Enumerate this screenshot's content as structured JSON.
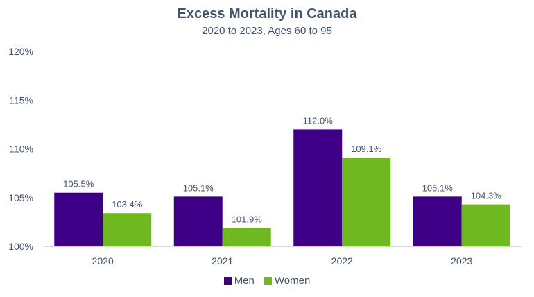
{
  "chart_data": {
    "type": "bar",
    "title": "Excess Mortality in Canada",
    "subtitle": "2020 to 2023, Ages 60 to 95",
    "categories": [
      "2020",
      "2021",
      "2022",
      "2023"
    ],
    "series": [
      {
        "name": "Men",
        "color": "#3f0088",
        "values": [
          105.5,
          105.1,
          112.0,
          105.1
        ],
        "labels": [
          "105.5%",
          "105.1%",
          "112.0%",
          "105.1%"
        ]
      },
      {
        "name": "Women",
        "color": "#70b81f",
        "values": [
          103.4,
          101.9,
          109.1,
          104.3
        ],
        "labels": [
          "103.4%",
          "101.9%",
          "109.1%",
          "104.3%"
        ]
      }
    ],
    "ylim": [
      100,
      120
    ],
    "yticks": [
      100,
      105,
      110,
      115,
      120
    ],
    "ytick_labels": [
      "100%",
      "105%",
      "110%",
      "115%",
      "120%"
    ],
    "grid": false,
    "legend_position": "bottom"
  }
}
